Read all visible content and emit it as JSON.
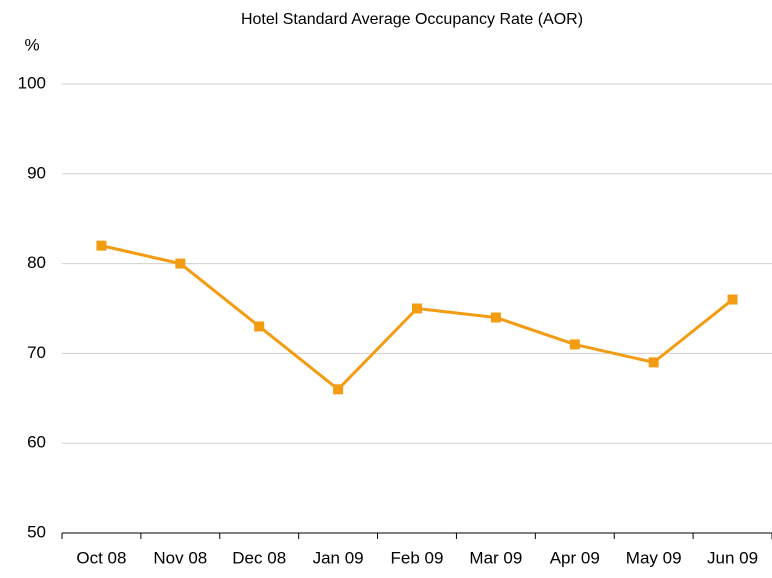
{
  "chart_data": {
    "type": "line",
    "title": "Hotel Standard Average Occupancy Rate (AOR)",
    "y_label": "%",
    "categories": [
      "Oct 08",
      "Nov 08",
      "Dec 08",
      "Jan 09",
      "Feb 09",
      "Mar 09",
      "Apr 09",
      "May 09",
      "Jun 09"
    ],
    "series": [
      {
        "name": "AOR",
        "color": "#f39c12",
        "values": [
          82,
          80,
          73,
          66,
          75,
          74,
          71,
          69,
          76
        ]
      }
    ],
    "ylim": [
      50,
      100
    ],
    "yticks": [
      50,
      60,
      70,
      80,
      90,
      100
    ],
    "grid": true
  }
}
